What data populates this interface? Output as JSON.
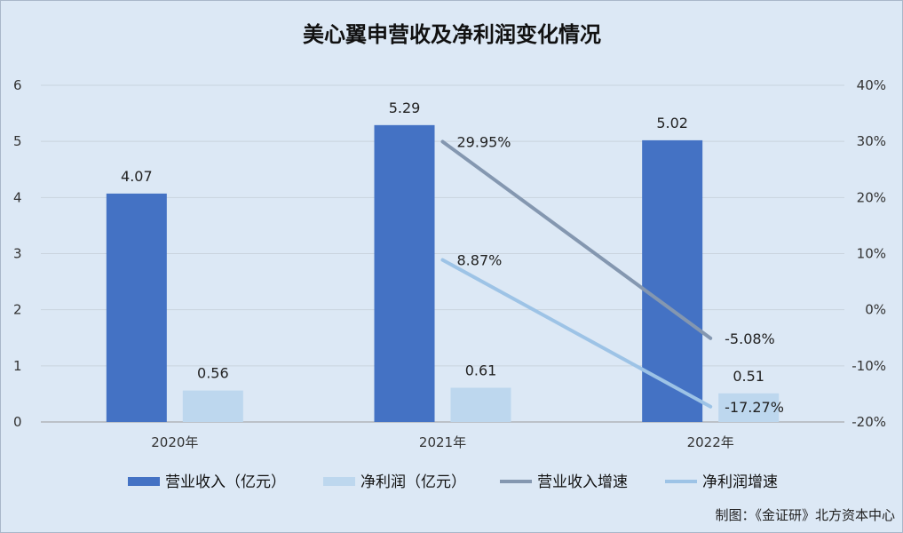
{
  "chart_data": {
    "type": "bar",
    "title": "美心翼申营收及净利润变化情况",
    "categories": [
      "2020年",
      "2021年",
      "2022年"
    ],
    "ylim": [
      0,
      6
    ],
    "y_ticks": [
      0,
      1,
      2,
      3,
      4,
      5,
      6
    ],
    "y2lim": [
      -20,
      40
    ],
    "y2_ticks": [
      "-20%",
      "-10%",
      "0%",
      "10%",
      "20%",
      "30%",
      "40%"
    ],
    "grid": true,
    "legend_position": "bottom",
    "series": [
      {
        "name": "营业收入（亿元）",
        "type": "bar",
        "axis": "left",
        "color": "#4472c4",
        "values": [
          4.07,
          5.29,
          5.02
        ],
        "labels": [
          "4.07",
          "5.29",
          "5.02"
        ]
      },
      {
        "name": "净利润（亿元）",
        "type": "bar",
        "axis": "left",
        "color": "#bdd7ee",
        "values": [
          0.56,
          0.61,
          0.51
        ],
        "labels": [
          "0.56",
          "0.61",
          "0.51"
        ]
      },
      {
        "name": "营业收入增速",
        "type": "line",
        "axis": "right",
        "color": "#8497b0",
        "values": [
          null,
          29.95,
          -5.08
        ],
        "labels": [
          "",
          "29.95%",
          "-5.08%"
        ]
      },
      {
        "name": "净利润增速",
        "type": "line",
        "axis": "right",
        "color": "#9dc3e6",
        "values": [
          null,
          8.87,
          -17.27
        ],
        "labels": [
          "",
          "8.87%",
          "-17.27%"
        ]
      }
    ]
  },
  "credit": "制图：《金证研》北方资本中心"
}
